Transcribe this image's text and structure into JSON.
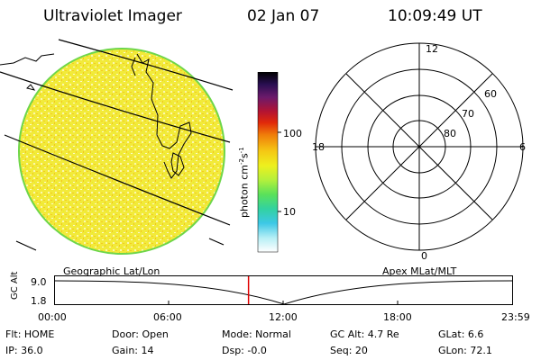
{
  "header": {
    "title": "Ultraviolet Imager",
    "date": "02 Jan 07",
    "time": "10:09:49 UT"
  },
  "colorbar": {
    "label": "photon cm",
    "label_sup1": "-2",
    "label_mid": "s",
    "label_sup2": "-1",
    "ticks": [
      "100",
      "10"
    ],
    "colors": [
      "#000000",
      "#1a0b3a",
      "#3a1564",
      "#6b1a6b",
      "#9a1a3a",
      "#c81414",
      "#e23a0a",
      "#f07e0a",
      "#f5b414",
      "#f5e61e",
      "#e6f01e",
      "#aaf03c",
      "#5ae15a",
      "#32d2a0",
      "#32c8dc",
      "#8ce6f0",
      "#d2f5fa",
      "#ffffff"
    ]
  },
  "left_panel": {
    "label": "Geographic Lat/Lon",
    "fill_color": "#f2ea3a",
    "edge_color": "#6ed64a"
  },
  "right_panel": {
    "label": "Apex MLat/MLT",
    "mlt_labels": {
      "top": "12",
      "left": "18",
      "right": "6",
      "bottom": "0"
    },
    "lat_labels": [
      "60",
      "70",
      "80"
    ]
  },
  "timeline": {
    "y_label": "GC Alt",
    "y_ticks": [
      "9.0",
      "1.8"
    ],
    "x_ticks": [
      "00:00",
      "06:00",
      "12:00",
      "18:00",
      "23:59"
    ],
    "current_time_hours": 10.16,
    "marker_color": "#e00000"
  },
  "status": {
    "row1": [
      "Flt: HOME",
      "Door: Open",
      "Mode: Normal",
      "GC Alt: 4.7 Re",
      "GLat:   6.6"
    ],
    "row2": [
      "IP: 36.0",
      "Gain: 14",
      "Dsp:   -0.0",
      "Seq: 20",
      "GLon:  72.1"
    ]
  }
}
